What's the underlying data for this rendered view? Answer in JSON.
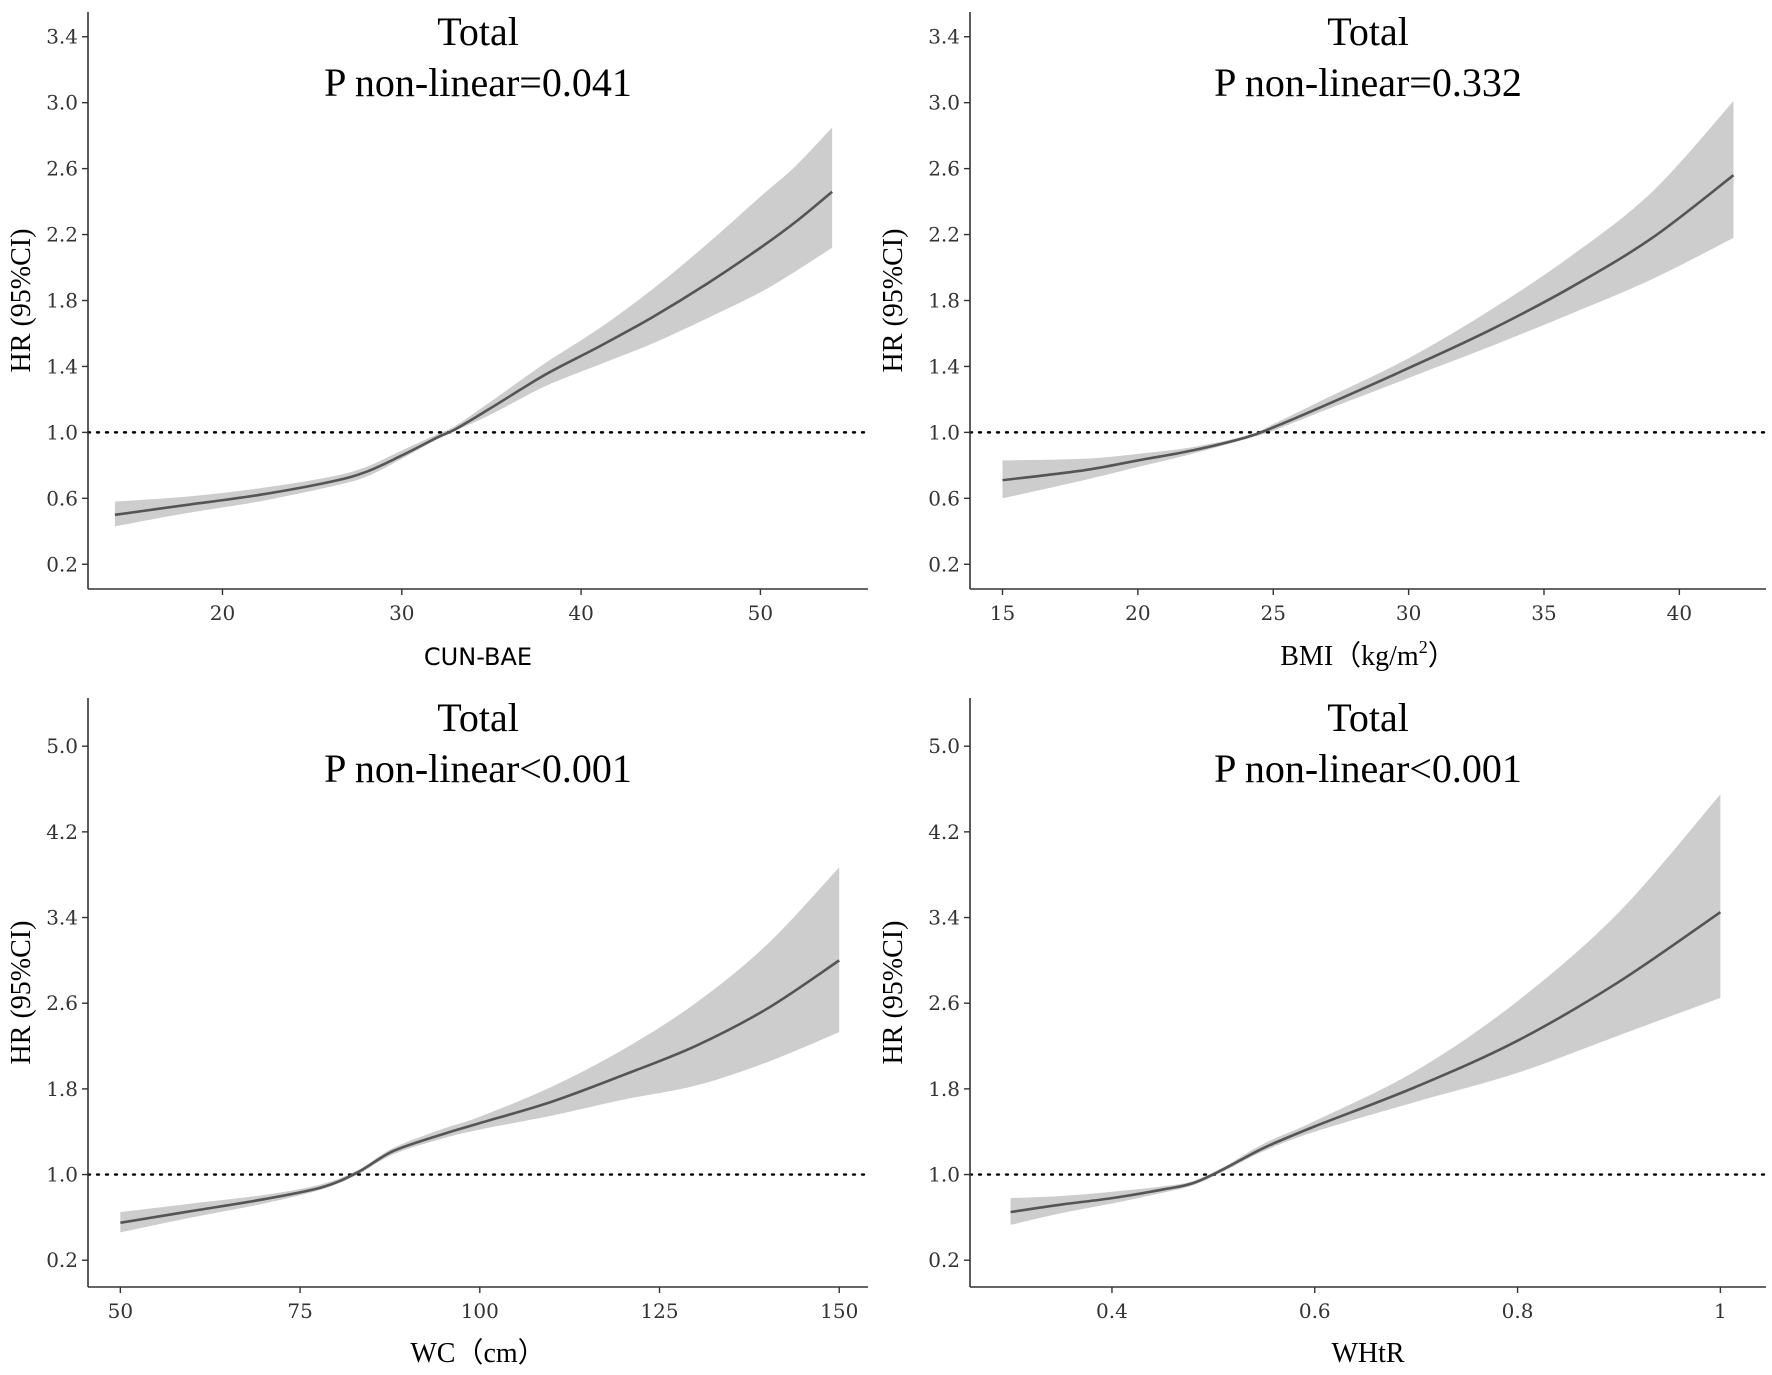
{
  "chart_data": [
    {
      "type": "line",
      "title": "Total",
      "subtitle": "P non-linear=0.041",
      "xlabel": "CUN-BAE",
      "ylabel": "HR (95%CI)",
      "xlim": [
        12.5,
        56
      ],
      "ylim": [
        0.05,
        3.55
      ],
      "xticks": [
        20,
        30,
        40,
        50
      ],
      "yticks": [
        0.2,
        0.6,
        1.0,
        1.4,
        1.8,
        2.2,
        2.6,
        3.0,
        3.4
      ],
      "yticklabels": [
        "0.2",
        "0.6",
        "1.0",
        "1.4",
        "1.8",
        "2.2",
        "2.6",
        "3.0",
        "3.4"
      ],
      "reference_y": 1.0,
      "series": [
        {
          "x": [
            14,
            18,
            22,
            26,
            28,
            30,
            32,
            33,
            35,
            38,
            41,
            44,
            47,
            50,
            52,
            54
          ],
          "y": [
            0.5,
            0.56,
            0.62,
            0.7,
            0.76,
            0.86,
            0.97,
            1.02,
            1.15,
            1.35,
            1.52,
            1.7,
            1.9,
            2.12,
            2.28,
            2.46
          ],
          "lower": [
            0.43,
            0.51,
            0.58,
            0.67,
            0.73,
            0.84,
            0.96,
            1.01,
            1.11,
            1.28,
            1.41,
            1.54,
            1.69,
            1.85,
            1.98,
            2.12
          ],
          "upper": [
            0.58,
            0.61,
            0.66,
            0.73,
            0.79,
            0.89,
            0.99,
            1.04,
            1.19,
            1.42,
            1.63,
            1.87,
            2.14,
            2.43,
            2.62,
            2.85
          ]
        }
      ]
    },
    {
      "type": "line",
      "title": "Total",
      "subtitle": "P non-linear=0.332",
      "xlabel": "BMI (kg/m²)",
      "xlabel_main": "BMI（kg/m",
      "xlabel_sup": "2",
      "xlabel_end": "）",
      "ylabel": "HR (95%CI)",
      "xlim": [
        13.8,
        43.2
      ],
      "ylim": [
        0.05,
        3.55
      ],
      "xticks": [
        15,
        20,
        25,
        30,
        35,
        40
      ],
      "yticks": [
        0.2,
        0.6,
        1.0,
        1.4,
        1.8,
        2.2,
        2.6,
        3.0,
        3.4
      ],
      "yticklabels": [
        "0.2",
        "0.6",
        "1.0",
        "1.4",
        "1.8",
        "2.2",
        "2.6",
        "3.0",
        "3.4"
      ],
      "reference_y": 1.0,
      "series": [
        {
          "x": [
            15,
            18,
            20,
            22,
            24,
            25,
            27,
            30,
            33,
            36,
            39,
            42
          ],
          "y": [
            0.71,
            0.77,
            0.83,
            0.89,
            0.97,
            1.03,
            1.17,
            1.39,
            1.62,
            1.88,
            2.18,
            2.56
          ],
          "lower": [
            0.6,
            0.71,
            0.79,
            0.87,
            0.96,
            1.01,
            1.14,
            1.33,
            1.52,
            1.72,
            1.93,
            2.18
          ],
          "upper": [
            0.83,
            0.84,
            0.87,
            0.91,
            0.98,
            1.05,
            1.21,
            1.45,
            1.74,
            2.07,
            2.46,
            3.01
          ]
        }
      ]
    },
    {
      "type": "line",
      "title": "Total",
      "subtitle": "P non-linear<0.001",
      "xlabel": "WC（cm）",
      "ylabel": "HR (95%CI)",
      "xlim": [
        45.5,
        154
      ],
      "ylim": [
        -0.05,
        5.45
      ],
      "xticks": [
        50,
        75,
        100,
        125,
        150
      ],
      "yticks": [
        0.2,
        1.0,
        1.8,
        2.6,
        3.4,
        4.2,
        5.0
      ],
      "yticklabels": [
        "0.2",
        "1.0",
        "1.8",
        "2.6",
        "3.4",
        "4.2",
        "5.0"
      ],
      "reference_y": 1.0,
      "series": [
        {
          "x": [
            50,
            60,
            70,
            78,
            83,
            88,
            95,
            100,
            110,
            120,
            130,
            140,
            150
          ],
          "y": [
            0.55,
            0.66,
            0.77,
            0.88,
            1.02,
            1.22,
            1.38,
            1.48,
            1.68,
            1.93,
            2.2,
            2.55,
            3.0
          ],
          "lower": [
            0.46,
            0.6,
            0.73,
            0.86,
            1.0,
            1.19,
            1.34,
            1.42,
            1.55,
            1.7,
            1.83,
            2.05,
            2.33
          ],
          "upper": [
            0.65,
            0.73,
            0.81,
            0.91,
            1.04,
            1.25,
            1.43,
            1.54,
            1.82,
            2.17,
            2.6,
            3.15,
            3.87
          ]
        }
      ]
    },
    {
      "type": "line",
      "title": "Total",
      "subtitle": "P non-linear<0.001",
      "xlabel": "WHtR",
      "ylabel": "HR (95%CI)",
      "xlim": [
        0.26,
        1.045
      ],
      "ylim": [
        -0.05,
        5.45
      ],
      "xticks": [
        0.4,
        0.6,
        0.8,
        1.0
      ],
      "yticks": [
        0.2,
        1.0,
        1.8,
        2.6,
        3.4,
        4.2,
        5.0
      ],
      "yticklabels": [
        "0.2",
        "1.0",
        "1.8",
        "2.6",
        "3.4",
        "4.2",
        "5.0"
      ],
      "reference_y": 1.0,
      "series": [
        {
          "x": [
            0.3,
            0.35,
            0.4,
            0.45,
            0.48,
            0.51,
            0.55,
            0.6,
            0.7,
            0.8,
            0.9,
            1.0
          ],
          "y": [
            0.65,
            0.72,
            0.78,
            0.86,
            0.92,
            1.05,
            1.25,
            1.45,
            1.82,
            2.25,
            2.8,
            3.45
          ],
          "lower": [
            0.53,
            0.64,
            0.73,
            0.83,
            0.9,
            1.03,
            1.22,
            1.4,
            1.68,
            1.95,
            2.3,
            2.65
          ],
          "upper": [
            0.78,
            0.8,
            0.84,
            0.89,
            0.94,
            1.07,
            1.29,
            1.5,
            1.97,
            2.62,
            3.45,
            4.55
          ]
        }
      ]
    }
  ]
}
